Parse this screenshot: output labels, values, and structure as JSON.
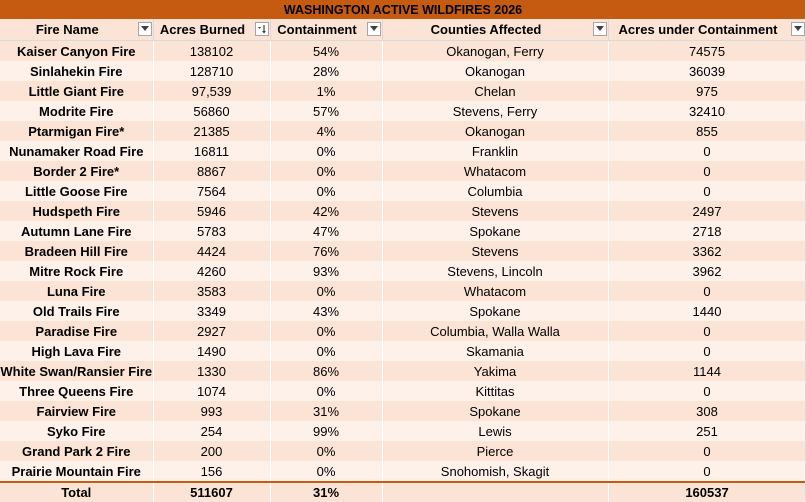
{
  "title": "WASHINGTON ACTIVE WILDFIRES 2026",
  "columns": [
    {
      "label": "Fire Name",
      "filter": "filter-dropdown-icon"
    },
    {
      "label": "Acres Burned",
      "filter": "sort-descending-icon"
    },
    {
      "label": "Containment",
      "filter": "filter-dropdown-icon"
    },
    {
      "label": "Counties Affected",
      "filter": "filter-dropdown-icon"
    },
    {
      "label": "Acres under Containment",
      "filter": "filter-dropdown-icon"
    }
  ],
  "rows": [
    [
      "Kaiser Canyon Fire",
      "138102",
      "54%",
      "Okanogan, Ferry",
      "74575"
    ],
    [
      "Sinlahekin Fire",
      "128710",
      "28%",
      "Okanogan",
      "36039"
    ],
    [
      "Little Giant Fire",
      "97,539",
      "1%",
      "Chelan",
      "975"
    ],
    [
      "Modrite Fire",
      "56860",
      "57%",
      "Stevens, Ferry",
      "32410"
    ],
    [
      "Ptarmigan Fire*",
      "21385",
      "4%",
      "Okanogan",
      "855"
    ],
    [
      "Nunamaker Road Fire",
      "16811",
      "0%",
      "Franklin",
      "0"
    ],
    [
      "Border 2 Fire*",
      "8867",
      "0%",
      "Whatacom",
      "0"
    ],
    [
      "Little Goose Fire",
      "7564",
      "0%",
      "Columbia",
      "0"
    ],
    [
      "Hudspeth Fire",
      "5946",
      "42%",
      "Stevens",
      "2497"
    ],
    [
      "Autumn Lane Fire",
      "5783",
      "47%",
      "Spokane",
      "2718"
    ],
    [
      "Bradeen Hill Fire",
      "4424",
      "76%",
      "Stevens",
      "3362"
    ],
    [
      "Mitre Rock Fire",
      "4260",
      "93%",
      "Stevens, Lincoln",
      "3962"
    ],
    [
      "Luna Fire",
      "3583",
      "0%",
      "Whatacom",
      "0"
    ],
    [
      "Old Trails Fire",
      "3349",
      "43%",
      "Spokane",
      "1440"
    ],
    [
      "Paradise Fire",
      "2927",
      "0%",
      "Columbia, Walla Walla",
      "0"
    ],
    [
      "High Lava Fire",
      "1490",
      "0%",
      "Skamania",
      "0"
    ],
    [
      "White Swan/Ransier Fire",
      "1330",
      "86%",
      "Yakima",
      "1144"
    ],
    [
      "Three Queens Fire",
      "1074",
      "0%",
      "Kittitas",
      "0"
    ],
    [
      "Fairview Fire",
      "993",
      "31%",
      "Spokane",
      "308"
    ],
    [
      "Syko Fire",
      "254",
      "99%",
      "Lewis",
      "251"
    ],
    [
      "Grand Park 2 Fire",
      "200",
      "0%",
      "Pierce",
      "0"
    ],
    [
      "Prairie Mountain Fire",
      "156",
      "0%",
      "Snohomish, Skagit",
      "0"
    ]
  ],
  "total": [
    "Total",
    "511607",
    "31%",
    "",
    "160537"
  ],
  "colors": {
    "title_bg": "#c55a11",
    "band_light": "#fdf1e9",
    "band_dark": "#fbe4d5"
  }
}
